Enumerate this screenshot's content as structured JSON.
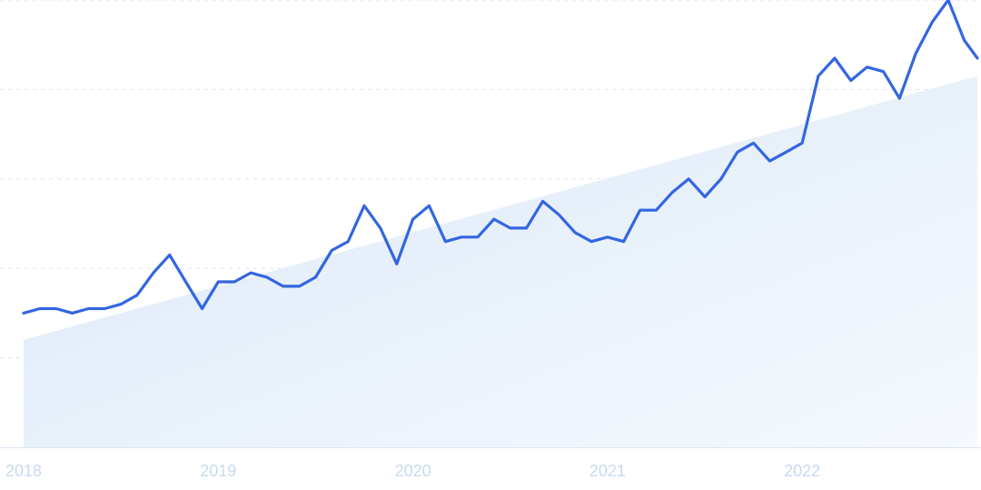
{
  "chart_data": {
    "type": "line",
    "title": "",
    "xlabel": "",
    "ylabel": "",
    "x_tick_labels": [
      "2018",
      "2019",
      "2020",
      "2021",
      "2022"
    ],
    "x_range": [
      2018.0,
      2022.9
    ],
    "y_range": [
      0,
      100
    ],
    "grid": "horizontal dashed",
    "y_tick_labels_shown": false,
    "trend_area": {
      "start": 24,
      "end": 83
    },
    "series": [
      {
        "x": [
          2018.0,
          2018.083,
          2018.167,
          2018.25,
          2018.333,
          2018.417,
          2018.5,
          2018.583,
          2018.667,
          2018.75,
          2018.833,
          2018.917,
          2019.0,
          2019.083,
          2019.167,
          2019.25,
          2019.333,
          2019.417,
          2019.5,
          2019.583,
          2019.667,
          2019.75,
          2019.833,
          2019.917,
          2020.0,
          2020.083,
          2020.167,
          2020.25,
          2020.333,
          2020.417,
          2020.5,
          2020.583,
          2020.667,
          2020.75,
          2020.833,
          2020.917,
          2021.0,
          2021.083,
          2021.167,
          2021.25,
          2021.333,
          2021.417,
          2021.5,
          2021.583,
          2021.667,
          2021.75,
          2021.833,
          2021.917,
          2022.0,
          2022.083,
          2022.167,
          2022.25,
          2022.333,
          2022.417,
          2022.5,
          2022.583,
          2022.667,
          2022.75,
          2022.833,
          2022.9
        ],
        "values": [
          30,
          31,
          31,
          30,
          31,
          31,
          32,
          34,
          39,
          43,
          37,
          31,
          37,
          37,
          39,
          38,
          36,
          36,
          38,
          44,
          46,
          54,
          49,
          41,
          51,
          54,
          46,
          47,
          47,
          51,
          49,
          49,
          55,
          52,
          48,
          46,
          47,
          46,
          53,
          53,
          57,
          60,
          56,
          60,
          66,
          68,
          64,
          66,
          68,
          83,
          87,
          82,
          85,
          84,
          78,
          88,
          95,
          100,
          91,
          87
        ]
      }
    ],
    "colors": {
      "line": "#3366e0",
      "area_top": "#dbe8f8",
      "area_bottom": "#f5f9fd",
      "grid": "#d8e3f0",
      "axis": "#dce6f2",
      "tick_label": "#c9d9f0"
    }
  }
}
